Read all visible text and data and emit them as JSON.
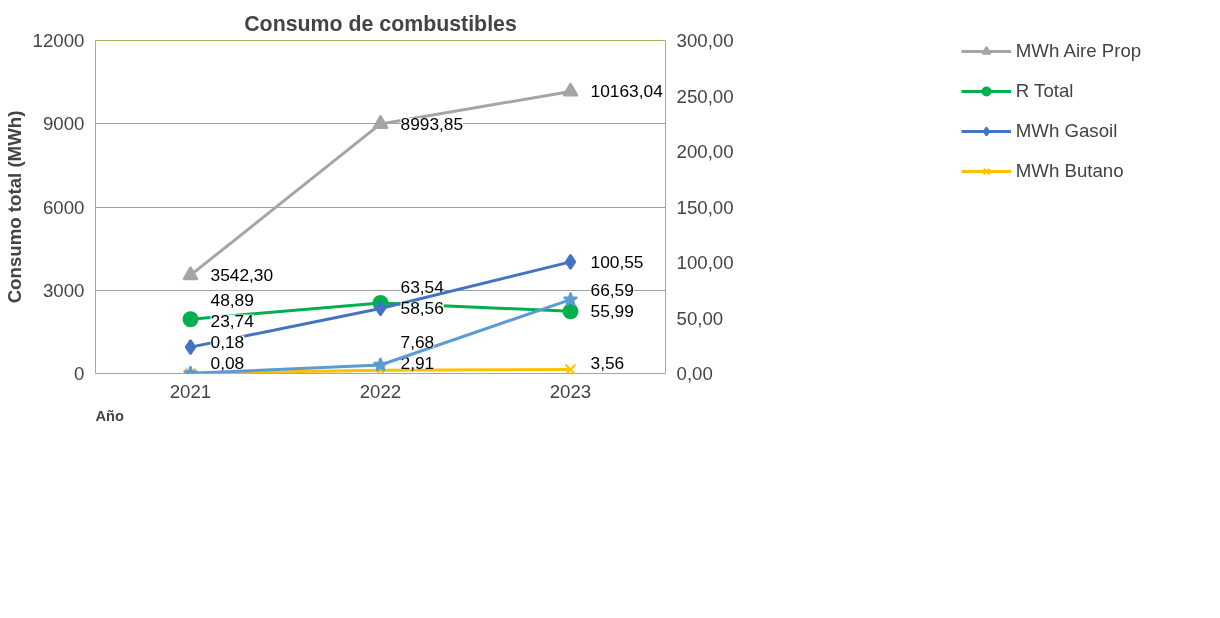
{
  "chart_data": {
    "type": "line",
    "title": "Consumo de combustibles",
    "xlabel": "Año",
    "ylabel": "Consumo total (MWh)",
    "categories": [
      "2021",
      "2022",
      "2023"
    ],
    "ylim": [
      0,
      12000
    ],
    "yticks": [
      0,
      3000,
      6000,
      9000,
      12000
    ],
    "y2lim": [
      0,
      300
    ],
    "y2ticks": [
      {
        "value": 0,
        "label": "0,00"
      },
      {
        "value": 50,
        "label": "50,00"
      },
      {
        "value": 100,
        "label": "100,00"
      },
      {
        "value": 150,
        "label": "150,00"
      },
      {
        "value": 200,
        "label": "200,00"
      },
      {
        "value": 250,
        "label": "250,00"
      },
      {
        "value": 300,
        "label": "300,00"
      }
    ],
    "grid": "y",
    "legend": "right",
    "series": [
      {
        "name": "MWh Aire Prop",
        "color": "#a5a5a5",
        "marker": "triangle",
        "values": [
          3542.3,
          8993.85,
          10163.04
        ],
        "value_labels": [
          "3542,30",
          "8993,85",
          "10163,04"
        ]
      },
      {
        "name": "R Total",
        "color": "#00b050",
        "marker": "circle",
        "axis": "y2",
        "values": [
          48.89,
          63.54,
          55.99
        ],
        "value_labels": [
          "48,89",
          "63,54",
          "55,99"
        ]
      },
      {
        "name": "MWh Gasoil",
        "color": "#4472c4",
        "marker": "diamond",
        "axis": "y2",
        "values": [
          23.74,
          58.56,
          100.55
        ],
        "value_labels": [
          "23,74",
          "58,56",
          "100,55"
        ]
      },
      {
        "name": "MWh Butano",
        "color": "#ffc000",
        "marker": "cross",
        "axis": "y2",
        "values": [
          0.08,
          2.91,
          3.56
        ],
        "value_labels": [
          "0,08",
          "2,91",
          "3,56"
        ]
      },
      {
        "color": "#5b9bd5",
        "marker": "star",
        "axis": "y2",
        "values": [
          0.18,
          7.68,
          66.59
        ],
        "value_labels": [
          "0,18",
          "7,68",
          "66,59"
        ]
      }
    ]
  }
}
